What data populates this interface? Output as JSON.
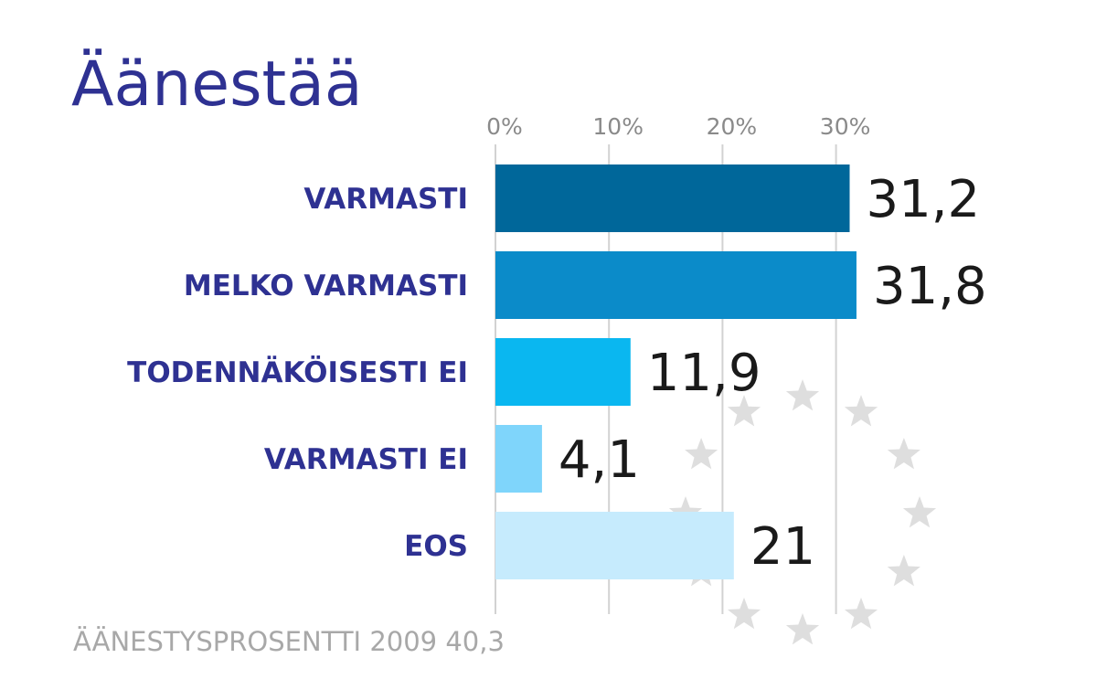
{
  "title": "Äänestää",
  "footnote": "ÄÄNESTYSPROSENTTI 2009 40,3",
  "chart_data": {
    "type": "bar",
    "orientation": "horizontal",
    "title": "Äänestää",
    "categories": [
      "VARMASTI",
      "MELKO VARMASTI",
      "TODENNÄKÖISESTI EI",
      "VARMASTI EI",
      "EOS"
    ],
    "values": [
      31.2,
      31.8,
      11.9,
      4.1,
      21
    ],
    "value_labels": [
      "31,2",
      "31,8",
      "11,9",
      "4,1",
      "21"
    ],
    "ticks": [
      0,
      10,
      20,
      30
    ],
    "tick_labels": [
      "0%",
      "10%",
      "20%",
      "30%"
    ],
    "xlim": [
      0,
      30
    ],
    "grid": true,
    "xlabel": "",
    "ylabel": "",
    "colors": [
      "#00679a",
      "#0b8bc9",
      "#0ab7f0",
      "#7fd5fb",
      "#c6ebfd"
    ],
    "decoration_color": "#dedede"
  }
}
